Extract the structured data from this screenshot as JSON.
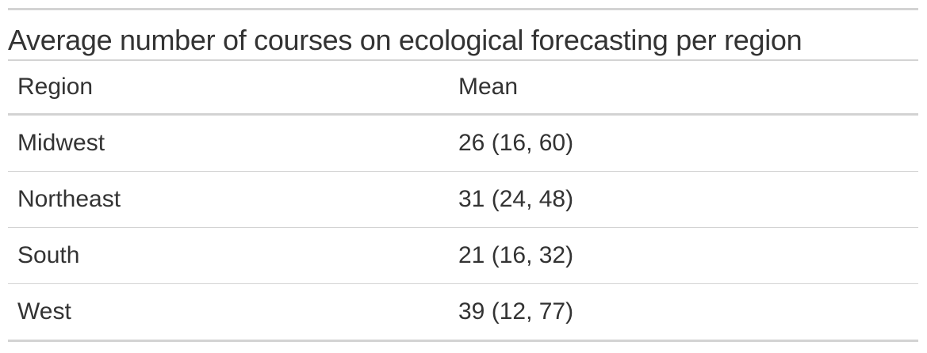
{
  "chart_data": {
    "type": "table",
    "title": "Average number of courses on ecological forecasting per region",
    "columns": [
      "Region",
      "Mean"
    ],
    "rows": [
      {
        "region": "Midwest",
        "mean": "26 (16, 60)"
      },
      {
        "region": "Northeast",
        "mean": "31 (24, 48)"
      },
      {
        "region": "South",
        "mean": "21 (16, 32)"
      },
      {
        "region": "West",
        "mean": "39 (12, 77)"
      }
    ]
  }
}
